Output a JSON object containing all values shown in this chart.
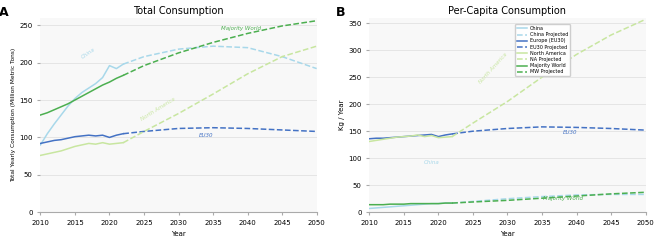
{
  "title_A": "Total Consumption",
  "title_B": "Per-Capita Consumption",
  "label_A": "A",
  "label_B": "B",
  "ylabel_A": "Total Yearly Consumption (Million Metric Tons)",
  "ylabel_B": "Kg / Year",
  "xlabel": "Year",
  "ylim_A": [
    0,
    260
  ],
  "ylim_B": [
    0,
    360
  ],
  "yticks_A": [
    0,
    50,
    100,
    150,
    200,
    250
  ],
  "yticks_B": [
    0,
    50,
    100,
    150,
    200,
    250,
    300,
    350
  ],
  "xlim": [
    2010,
    2050
  ],
  "xticks": [
    2010,
    2015,
    2020,
    2025,
    2030,
    2035,
    2040,
    2045,
    2050
  ],
  "color_china": "#a8d8ea",
  "color_eu30": "#4472c4",
  "color_na": "#c8e6a0",
  "color_mw": "#4caf50",
  "years_hist": [
    2010,
    2011,
    2012,
    2013,
    2014,
    2015,
    2016,
    2017,
    2018,
    2019,
    2020,
    2021,
    2022
  ],
  "years_proj": [
    2022,
    2025,
    2030,
    2035,
    2040,
    2045,
    2050
  ],
  "A_china_hist": [
    90,
    105,
    118,
    130,
    142,
    152,
    160,
    166,
    172,
    180,
    196,
    192,
    198
  ],
  "A_china_proj": [
    198,
    208,
    218,
    222,
    220,
    208,
    192
  ],
  "A_eu30_hist": [
    92,
    94,
    96,
    97,
    99,
    101,
    102,
    103,
    102,
    103,
    100,
    103,
    105
  ],
  "A_eu30_proj": [
    105,
    108,
    112,
    113,
    112,
    110,
    108
  ],
  "A_na_hist": [
    76,
    78,
    80,
    82,
    85,
    88,
    90,
    92,
    91,
    93,
    91,
    92,
    93
  ],
  "A_na_proj": [
    93,
    108,
    132,
    158,
    185,
    208,
    222
  ],
  "A_mw_hist": [
    130,
    133,
    137,
    141,
    145,
    150,
    155,
    160,
    165,
    170,
    174,
    179,
    183
  ],
  "A_mw_proj": [
    183,
    196,
    213,
    227,
    239,
    249,
    256
  ],
  "B_china_hist": [
    7,
    8,
    9,
    10,
    11,
    12,
    13,
    14,
    15,
    16,
    16,
    17,
    17
  ],
  "B_china_proj": [
    17,
    20,
    25,
    29,
    32,
    33,
    33
  ],
  "B_eu30_hist": [
    136,
    137,
    137,
    138,
    139,
    140,
    141,
    142,
    143,
    144,
    140,
    143,
    145
  ],
  "B_eu30_proj": [
    145,
    150,
    155,
    158,
    157,
    155,
    152
  ],
  "B_na_hist": [
    131,
    133,
    135,
    137,
    139,
    140,
    141,
    143,
    140,
    142,
    138,
    139,
    140
  ],
  "B_na_proj": [
    140,
    165,
    205,
    250,
    292,
    328,
    357
  ],
  "B_mw_hist": [
    14,
    14,
    14,
    15,
    15,
    15,
    16,
    16,
    16,
    16,
    16,
    17,
    17
  ],
  "B_mw_proj": [
    17,
    19,
    22,
    26,
    30,
    34,
    37
  ],
  "ann_A_china_x": 2017,
  "ann_A_china_y": 205,
  "ann_A_china_t": "China",
  "ann_A_china_r": 35,
  "ann_A_na_x": 2027,
  "ann_A_na_y": 122,
  "ann_A_na_t": "North America",
  "ann_A_na_r": 32,
  "ann_A_eu30_x": 2034,
  "ann_A_eu30_y": 100,
  "ann_A_eu30_t": "EU30",
  "ann_A_eu30_r": 0,
  "ann_A_mw_x": 2039,
  "ann_A_mw_y": 243,
  "ann_A_mw_t": "Majority World",
  "ann_A_mw_r": 0,
  "ann_B_china_x": 2019,
  "ann_B_china_y": 90,
  "ann_B_china_t": "China",
  "ann_B_china_r": 0,
  "ann_B_na_x": 2028,
  "ann_B_na_y": 238,
  "ann_B_na_t": "North America",
  "ann_B_na_r": 48,
  "ann_B_eu30_x": 2039,
  "ann_B_eu30_y": 145,
  "ann_B_eu30_t": "EU30",
  "ann_B_eu30_r": 0,
  "ann_B_mw_x": 2038,
  "ann_B_mw_y": 22,
  "ann_B_mw_t": "Majority World",
  "ann_B_mw_r": 0,
  "legend_entries": [
    {
      "label": "China",
      "color": "#a8d8ea",
      "linestyle": "-"
    },
    {
      "label": "China Projected",
      "color": "#a8d8ea",
      "linestyle": "--"
    },
    {
      "label": "Europe (EU30)",
      "color": "#4472c4",
      "linestyle": "-"
    },
    {
      "label": "EU30 Projected",
      "color": "#4472c4",
      "linestyle": "--"
    },
    {
      "label": "North America",
      "color": "#c8e6a0",
      "linestyle": "-"
    },
    {
      "label": "NA Projected",
      "color": "#c8e6a0",
      "linestyle": "--"
    },
    {
      "label": "Majority World",
      "color": "#4caf50",
      "linestyle": "-"
    },
    {
      "label": "MW Projected",
      "color": "#4caf50",
      "linestyle": "--"
    }
  ],
  "bg_color": "#f8f8f8",
  "grid_color": "#dddddd"
}
